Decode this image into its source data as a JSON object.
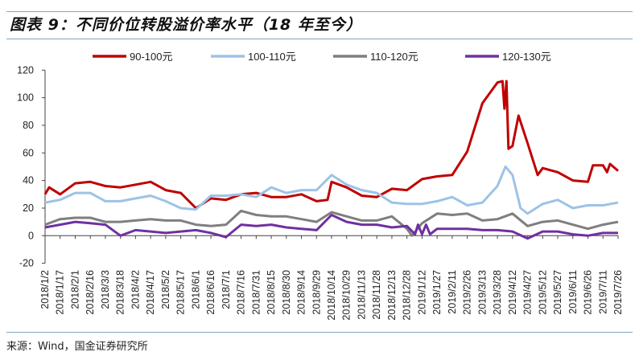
{
  "title": "图表 9：不同价位转股溢价率水平（18 年至今）",
  "source": "来源：Wind，国金证券研究所",
  "chart_data": {
    "type": "line",
    "title": "图表 9：不同价位转股溢价率水平（18 年至今）",
    "xlabel": "",
    "ylabel": "",
    "ylim": [
      -20,
      120
    ],
    "yticks": [
      -20,
      0,
      20,
      40,
      60,
      80,
      100,
      120
    ],
    "xlim": [
      "2018/1/2",
      "2019/7/26"
    ],
    "xticks": [
      "2018/1/2",
      "2018/1/17",
      "2018/2/1",
      "2018/2/16",
      "2018/3/3",
      "2018/3/18",
      "2018/4/2",
      "2018/4/17",
      "2018/5/2",
      "2018/5/17",
      "2018/6/1",
      "2018/6/16",
      "2018/7/1",
      "2018/7/16",
      "2018/7/31",
      "2018/8/15",
      "2018/8/30",
      "2018/9/14",
      "2018/9/29",
      "2018/10/14",
      "2018/10/29",
      "2018/11/13",
      "2018/11/28",
      "2018/12/13",
      "2018/12/28",
      "2019/1/12",
      "2019/1/27",
      "2019/2/11",
      "2019/2/26",
      "2019/3/13",
      "2019/3/28",
      "2019/4/12",
      "2019/4/27",
      "2019/5/12",
      "2019/5/27",
      "2019/6/11",
      "2019/6/26",
      "2019/7/11",
      "2019/7/26"
    ],
    "legend_position": "top",
    "grid": false,
    "series": [
      {
        "name": "90-100元",
        "color": "#c00000",
        "points": [
          [
            "2018/1/2",
            30
          ],
          [
            "2018/1/6",
            35
          ],
          [
            "2018/1/17",
            30
          ],
          [
            "2018/2/1",
            38
          ],
          [
            "2018/2/16",
            39
          ],
          [
            "2018/3/3",
            36
          ],
          [
            "2018/3/18",
            35
          ],
          [
            "2018/4/2",
            37
          ],
          [
            "2018/4/17",
            39
          ],
          [
            "2018/5/2",
            33
          ],
          [
            "2018/5/17",
            31
          ],
          [
            "2018/6/1",
            20
          ],
          [
            "2018/6/16",
            27
          ],
          [
            "2018/7/1",
            26
          ],
          [
            "2018/7/16",
            30
          ],
          [
            "2018/7/31",
            31
          ],
          [
            "2018/8/15",
            28
          ],
          [
            "2018/8/30",
            28
          ],
          [
            "2018/9/14",
            30
          ],
          [
            "2018/9/29",
            25
          ],
          [
            "2018/10/10",
            26
          ],
          [
            "2018/10/14",
            39
          ],
          [
            "2018/10/29",
            35
          ],
          [
            "2018/11/13",
            29
          ],
          [
            "2018/11/28",
            28
          ],
          [
            "2018/12/13",
            34
          ],
          [
            "2018/12/28",
            33
          ],
          [
            "2019/1/12",
            41
          ],
          [
            "2019/1/27",
            43
          ],
          [
            "2019/2/11",
            44
          ],
          [
            "2019/2/26",
            61
          ],
          [
            "2019/3/13",
            96
          ],
          [
            "2019/3/28",
            111
          ],
          [
            "2019/4/2",
            112
          ],
          [
            "2019/4/4",
            92
          ],
          [
            "2019/4/6",
            112
          ],
          [
            "2019/4/8",
            63
          ],
          [
            "2019/4/12",
            65
          ],
          [
            "2019/4/18",
            87
          ],
          [
            "2019/4/27",
            67
          ],
          [
            "2019/5/7",
            44
          ],
          [
            "2019/5/12",
            49
          ],
          [
            "2019/5/27",
            46
          ],
          [
            "2019/6/11",
            40
          ],
          [
            "2019/6/26",
            39
          ],
          [
            "2019/7/1",
            51
          ],
          [
            "2019/7/11",
            51
          ],
          [
            "2019/7/15",
            46
          ],
          [
            "2019/7/18",
            52
          ],
          [
            "2019/7/26",
            47
          ]
        ]
      },
      {
        "name": "100-110元",
        "color": "#9dc3e6",
        "points": [
          [
            "2018/1/2",
            24
          ],
          [
            "2018/1/17",
            26
          ],
          [
            "2018/2/1",
            31
          ],
          [
            "2018/2/16",
            31
          ],
          [
            "2018/3/3",
            25
          ],
          [
            "2018/3/18",
            25
          ],
          [
            "2018/4/2",
            27
          ],
          [
            "2018/4/17",
            29
          ],
          [
            "2018/5/2",
            25
          ],
          [
            "2018/5/17",
            20
          ],
          [
            "2018/6/1",
            19
          ],
          [
            "2018/6/16",
            29
          ],
          [
            "2018/7/1",
            29
          ],
          [
            "2018/7/16",
            30
          ],
          [
            "2018/7/31",
            28
          ],
          [
            "2018/8/15",
            35
          ],
          [
            "2018/8/30",
            31
          ],
          [
            "2018/9/14",
            33
          ],
          [
            "2018/9/29",
            33
          ],
          [
            "2018/10/14",
            44
          ],
          [
            "2018/10/29",
            37
          ],
          [
            "2018/11/13",
            33
          ],
          [
            "2018/11/28",
            31
          ],
          [
            "2018/12/13",
            24
          ],
          [
            "2018/12/28",
            23
          ],
          [
            "2019/1/12",
            23
          ],
          [
            "2019/1/27",
            25
          ],
          [
            "2019/2/11",
            28
          ],
          [
            "2019/2/26",
            22
          ],
          [
            "2019/3/13",
            24
          ],
          [
            "2019/3/28",
            36
          ],
          [
            "2019/4/5",
            50
          ],
          [
            "2019/4/12",
            44
          ],
          [
            "2019/4/20",
            20
          ],
          [
            "2019/4/27",
            16
          ],
          [
            "2019/5/12",
            23
          ],
          [
            "2019/5/27",
            26
          ],
          [
            "2019/6/11",
            20
          ],
          [
            "2019/6/26",
            22
          ],
          [
            "2019/7/11",
            22
          ],
          [
            "2019/7/26",
            24
          ]
        ]
      },
      {
        "name": "110-120元",
        "color": "#7f7f7f",
        "points": [
          [
            "2018/1/2",
            8
          ],
          [
            "2018/1/17",
            12
          ],
          [
            "2018/2/1",
            13
          ],
          [
            "2018/2/16",
            13
          ],
          [
            "2018/3/3",
            10
          ],
          [
            "2018/3/18",
            10
          ],
          [
            "2018/4/2",
            11
          ],
          [
            "2018/4/17",
            12
          ],
          [
            "2018/5/2",
            11
          ],
          [
            "2018/5/17",
            11
          ],
          [
            "2018/6/1",
            8
          ],
          [
            "2018/6/16",
            7
          ],
          [
            "2018/7/1",
            8
          ],
          [
            "2018/7/16",
            18
          ],
          [
            "2018/7/31",
            15
          ],
          [
            "2018/8/15",
            14
          ],
          [
            "2018/8/30",
            14
          ],
          [
            "2018/9/14",
            12
          ],
          [
            "2018/9/29",
            10
          ],
          [
            "2018/10/14",
            17
          ],
          [
            "2018/10/29",
            14
          ],
          [
            "2018/11/13",
            11
          ],
          [
            "2018/11/28",
            11
          ],
          [
            "2018/12/13",
            14
          ],
          [
            "2018/12/28",
            5
          ],
          [
            "2019/1/2",
            0
          ],
          [
            "2019/1/12",
            9
          ],
          [
            "2019/1/27",
            16
          ],
          [
            "2019/2/11",
            15
          ],
          [
            "2019/2/26",
            16
          ],
          [
            "2019/3/13",
            11
          ],
          [
            "2019/3/28",
            12
          ],
          [
            "2019/4/12",
            16
          ],
          [
            "2019/4/27",
            7
          ],
          [
            "2019/5/12",
            10
          ],
          [
            "2019/5/27",
            11
          ],
          [
            "2019/6/11",
            8
          ],
          [
            "2019/6/26",
            5
          ],
          [
            "2019/7/11",
            8
          ],
          [
            "2019/7/26",
            10
          ]
        ]
      },
      {
        "name": "120-130元",
        "color": "#7030a0",
        "points": [
          [
            "2018/1/2",
            6
          ],
          [
            "2018/1/17",
            8
          ],
          [
            "2018/2/1",
            10
          ],
          [
            "2018/2/16",
            9
          ],
          [
            "2018/3/3",
            8
          ],
          [
            "2018/3/18",
            0
          ],
          [
            "2018/4/2",
            4
          ],
          [
            "2018/4/17",
            3
          ],
          [
            "2018/5/2",
            2
          ],
          [
            "2018/5/17",
            3
          ],
          [
            "2018/6/1",
            4
          ],
          [
            "2018/6/16",
            2
          ],
          [
            "2018/7/1",
            -1
          ],
          [
            "2018/7/16",
            8
          ],
          [
            "2018/7/31",
            7
          ],
          [
            "2018/8/15",
            8
          ],
          [
            "2018/8/30",
            6
          ],
          [
            "2018/9/14",
            5
          ],
          [
            "2018/9/29",
            4
          ],
          [
            "2018/10/14",
            15
          ],
          [
            "2018/10/29",
            10
          ],
          [
            "2018/11/13",
            8
          ],
          [
            "2018/11/28",
            8
          ],
          [
            "2018/12/13",
            6
          ],
          [
            "2018/12/28",
            7
          ],
          [
            "2019/1/5",
            1
          ],
          [
            "2019/1/8",
            8
          ],
          [
            "2019/1/12",
            1
          ],
          [
            "2019/1/16",
            8
          ],
          [
            "2019/1/20",
            1
          ],
          [
            "2019/1/27",
            5
          ],
          [
            "2019/2/11",
            5
          ],
          [
            "2019/2/26",
            5
          ],
          [
            "2019/3/13",
            4
          ],
          [
            "2019/3/28",
            4
          ],
          [
            "2019/4/12",
            3
          ],
          [
            "2019/4/27",
            -2
          ],
          [
            "2019/5/12",
            3
          ],
          [
            "2019/5/27",
            3
          ],
          [
            "2019/6/11",
            1
          ],
          [
            "2019/6/26",
            0
          ],
          [
            "2019/7/11",
            2
          ],
          [
            "2019/7/26",
            2
          ]
        ]
      }
    ]
  }
}
